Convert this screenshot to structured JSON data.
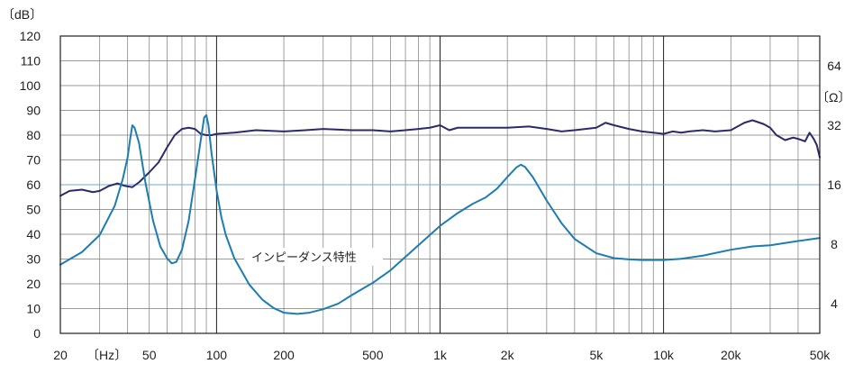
{
  "chart_data": {
    "type": "line",
    "title": "",
    "x_scale": "log",
    "xlim": [
      20,
      50000
    ],
    "ylim_left": [
      0,
      120
    ],
    "ylim_right_ohm": [
      2.83,
      90.5
    ],
    "grid": true,
    "left_unit_label": "〔dB〕",
    "right_unit_label": "〔Ω〕",
    "x_unit_label": "〔Hz〕",
    "x_ticks": [
      {
        "value": 20,
        "label": "20"
      },
      {
        "value": 50,
        "label": "50"
      },
      {
        "value": 100,
        "label": "100"
      },
      {
        "value": 200,
        "label": "200"
      },
      {
        "value": 500,
        "label": "500"
      },
      {
        "value": 1000,
        "label": "1k"
      },
      {
        "value": 2000,
        "label": "2k"
      },
      {
        "value": 5000,
        "label": "5k"
      },
      {
        "value": 10000,
        "label": "10k"
      },
      {
        "value": 20000,
        "label": "20k"
      },
      {
        "value": 50000,
        "label": "50k"
      }
    ],
    "y_ticks_left": [
      "0",
      "10",
      "20",
      "30",
      "40",
      "50",
      "60",
      "70",
      "80",
      "90",
      "100",
      "110",
      "120"
    ],
    "y_ticks_right": [
      {
        "value": 4,
        "label": "4"
      },
      {
        "value": 8,
        "label": "8"
      },
      {
        "value": 16,
        "label": "16"
      },
      {
        "value": 32,
        "label": "32"
      },
      {
        "value": 64,
        "label": "64"
      }
    ],
    "reference_line_ohm": 16,
    "annotations": [
      {
        "text": "インピーダンス特性",
        "series": "impedance"
      }
    ],
    "series": [
      {
        "id": "spl",
        "axis": "left",
        "color": "#2b2a6b",
        "points": [
          [
            20,
            55.5
          ],
          [
            22,
            57.5
          ],
          [
            25,
            58
          ],
          [
            28,
            57
          ],
          [
            30,
            57.5
          ],
          [
            33,
            59.5
          ],
          [
            36,
            60.5
          ],
          [
            39,
            59.5
          ],
          [
            42,
            59
          ],
          [
            45,
            61
          ],
          [
            50,
            65
          ],
          [
            55,
            69
          ],
          [
            60,
            75
          ],
          [
            65,
            80
          ],
          [
            70,
            82.5
          ],
          [
            75,
            83
          ],
          [
            80,
            82.5
          ],
          [
            85,
            80.5
          ],
          [
            90,
            80
          ],
          [
            95,
            80
          ],
          [
            100,
            80.5
          ],
          [
            120,
            81
          ],
          [
            150,
            82
          ],
          [
            200,
            81.5
          ],
          [
            250,
            82
          ],
          [
            300,
            82.5
          ],
          [
            400,
            82
          ],
          [
            500,
            82
          ],
          [
            600,
            81.5
          ],
          [
            700,
            82
          ],
          [
            800,
            82.5
          ],
          [
            900,
            83
          ],
          [
            1000,
            84
          ],
          [
            1100,
            82
          ],
          [
            1200,
            83
          ],
          [
            1500,
            83
          ],
          [
            2000,
            83
          ],
          [
            2500,
            83.5
          ],
          [
            3000,
            82.5
          ],
          [
            3500,
            81.5
          ],
          [
            4000,
            82
          ],
          [
            5000,
            83
          ],
          [
            5500,
            85
          ],
          [
            6000,
            84
          ],
          [
            7000,
            82.5
          ],
          [
            8000,
            81.5
          ],
          [
            9000,
            81
          ],
          [
            10000,
            80.5
          ],
          [
            11000,
            81.5
          ],
          [
            12000,
            81
          ],
          [
            13000,
            81.5
          ],
          [
            15000,
            82
          ],
          [
            17000,
            81.5
          ],
          [
            20000,
            82
          ],
          [
            23000,
            85
          ],
          [
            25000,
            86
          ],
          [
            28000,
            84.5
          ],
          [
            30000,
            83
          ],
          [
            32000,
            80
          ],
          [
            35000,
            78
          ],
          [
            38000,
            79
          ],
          [
            40000,
            78.5
          ],
          [
            43000,
            77.5
          ],
          [
            45000,
            81
          ],
          [
            47000,
            78.5
          ],
          [
            48500,
            76
          ],
          [
            50000,
            71
          ]
        ]
      },
      {
        "id": "impedance",
        "name": "インピーダンス特性",
        "axis": "right_ohm",
        "color": "#1d7db0",
        "points": [
          [
            20,
            6.3
          ],
          [
            25,
            7.3
          ],
          [
            30,
            8.9
          ],
          [
            35,
            12.5
          ],
          [
            38,
            17
          ],
          [
            40,
            22
          ],
          [
            41,
            27
          ],
          [
            42,
            32
          ],
          [
            43,
            31
          ],
          [
            45,
            26
          ],
          [
            48,
            16.5
          ],
          [
            52,
            10.5
          ],
          [
            56,
            7.8
          ],
          [
            60,
            6.8
          ],
          [
            63,
            6.4
          ],
          [
            66,
            6.5
          ],
          [
            70,
            7.5
          ],
          [
            75,
            10.5
          ],
          [
            80,
            17
          ],
          [
            85,
            27
          ],
          [
            88,
            35
          ],
          [
            90,
            36
          ],
          [
            92,
            32
          ],
          [
            95,
            23
          ],
          [
            100,
            15
          ],
          [
            105,
            11
          ],
          [
            110,
            8.9
          ],
          [
            120,
            6.8
          ],
          [
            140,
            5
          ],
          [
            160,
            4.2
          ],
          [
            180,
            3.8
          ],
          [
            200,
            3.6
          ],
          [
            230,
            3.55
          ],
          [
            260,
            3.6
          ],
          [
            300,
            3.75
          ],
          [
            350,
            4
          ],
          [
            400,
            4.4
          ],
          [
            500,
            5.1
          ],
          [
            600,
            5.9
          ],
          [
            700,
            6.9
          ],
          [
            800,
            7.9
          ],
          [
            900,
            8.9
          ],
          [
            1000,
            9.9
          ],
          [
            1200,
            11.5
          ],
          [
            1400,
            12.8
          ],
          [
            1600,
            13.8
          ],
          [
            1800,
            15.3
          ],
          [
            2000,
            17.5
          ],
          [
            2200,
            19.6
          ],
          [
            2300,
            20.2
          ],
          [
            2400,
            19.7
          ],
          [
            2600,
            17.5
          ],
          [
            3000,
            13.3
          ],
          [
            3500,
            10.2
          ],
          [
            4000,
            8.5
          ],
          [
            5000,
            7.2
          ],
          [
            6000,
            6.8
          ],
          [
            7000,
            6.7
          ],
          [
            8000,
            6.65
          ],
          [
            10000,
            6.65
          ],
          [
            12000,
            6.75
          ],
          [
            15000,
            7
          ],
          [
            20000,
            7.5
          ],
          [
            25000,
            7.8
          ],
          [
            30000,
            7.9
          ],
          [
            40000,
            8.3
          ],
          [
            50000,
            8.6
          ]
        ]
      }
    ]
  }
}
